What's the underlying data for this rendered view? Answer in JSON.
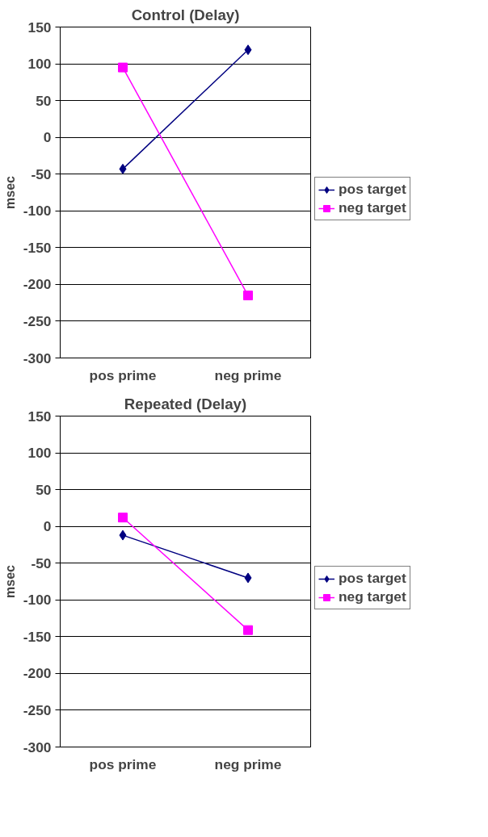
{
  "chart_data": [
    {
      "type": "line",
      "title": "Control (Delay)",
      "ylabel": "msec",
      "categories": [
        "pos prime",
        "neg prime"
      ],
      "ylim": [
        -300,
        150
      ],
      "yticks": [
        -300,
        -250,
        -200,
        -150,
        -100,
        -50,
        0,
        50,
        100,
        150
      ],
      "grid": "y",
      "legend": "right",
      "series": [
        {
          "name": "pos target",
          "color": "#000080",
          "marker": "diamond",
          "values": [
            -43,
            119
          ]
        },
        {
          "name": "neg target",
          "color": "#ff00ff",
          "marker": "square",
          "values": [
            95,
            -215
          ]
        }
      ]
    },
    {
      "type": "line",
      "title": "Repeated (Delay)",
      "ylabel": "msec",
      "categories": [
        "pos prime",
        "neg prime"
      ],
      "ylim": [
        -300,
        150
      ],
      "yticks": [
        -300,
        -250,
        -200,
        -150,
        -100,
        -50,
        0,
        50,
        100,
        150
      ],
      "grid": "y",
      "legend": "right",
      "series": [
        {
          "name": "pos target",
          "color": "#000080",
          "marker": "diamond",
          "values": [
            -12,
            -70
          ]
        },
        {
          "name": "neg target",
          "color": "#ff00ff",
          "marker": "square",
          "values": [
            12,
            -141
          ]
        }
      ]
    }
  ]
}
